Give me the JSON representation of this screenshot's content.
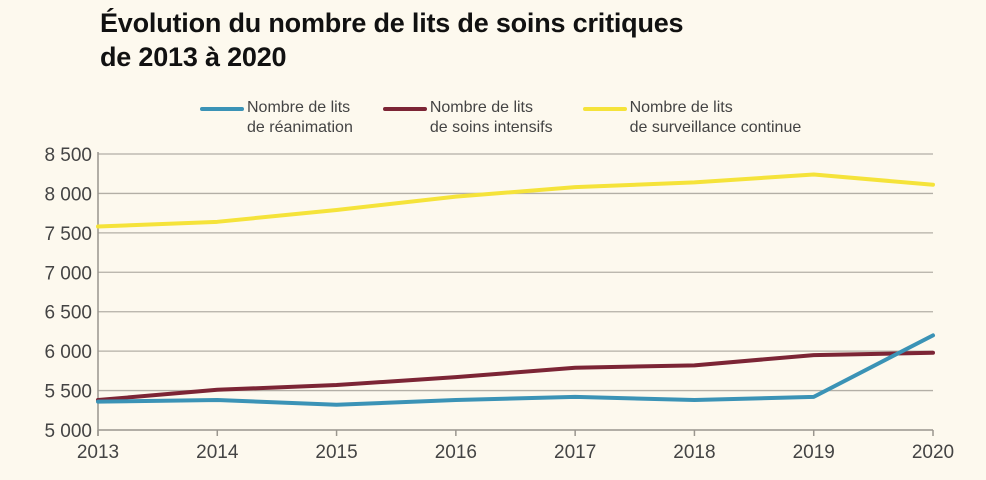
{
  "title_line1": "Évolution du nombre de lits de soins critiques",
  "title_line2": "de 2013 à 2020",
  "chart_data": {
    "type": "line",
    "title": "Évolution du nombre de lits de soins critiques de 2013 à 2020",
    "xlabel": "",
    "ylabel": "",
    "x": [
      "2013",
      "2014",
      "2015",
      "2016",
      "2017",
      "2018",
      "2019",
      "2020"
    ],
    "ylim": [
      5000,
      8500
    ],
    "yticks": [
      5000,
      5500,
      6000,
      6500,
      7000,
      7500,
      8000,
      8500
    ],
    "ytick_labels": [
      "5 000",
      "5 500",
      "6 000",
      "6 500",
      "7 000",
      "7 500",
      "8 000",
      "8 500"
    ],
    "grid": "horizontal",
    "legend_position": "top",
    "series": [
      {
        "name": "Nombre de lits de réanimation",
        "legend_lines": [
          "Nombre de lits",
          "de réanimation"
        ],
        "color": "#3b93b6",
        "values": [
          5360,
          5380,
          5320,
          5380,
          5420,
          5380,
          5420,
          6200
        ]
      },
      {
        "name": "Nombre de lits de soins intensifs",
        "legend_lines": [
          "Nombre de lits",
          "de soins intensifs"
        ],
        "color": "#7c2535",
        "values": [
          5380,
          5510,
          5570,
          5670,
          5790,
          5820,
          5950,
          5980
        ]
      },
      {
        "name": "Nombre de lits de surveillance continue",
        "legend_lines": [
          "Nombre de lits",
          "de surveillance continue"
        ],
        "color": "#f5e33a",
        "values": [
          7580,
          7640,
          7790,
          7960,
          8080,
          8140,
          8240,
          8110
        ]
      }
    ]
  }
}
